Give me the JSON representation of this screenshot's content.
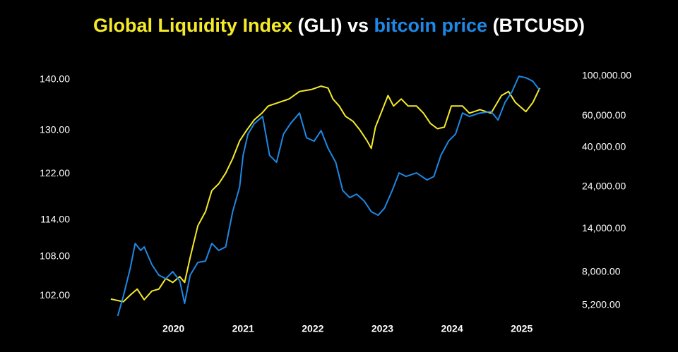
{
  "chart_data": {
    "type": "line",
    "title": [
      "Global Liquidity Index",
      "(GLI) vs",
      "bitcoin price",
      "(BTCUSD)"
    ],
    "background": "#000000",
    "text_color": "#ffffff",
    "grid": false,
    "xlim": [
      2019.0,
      2025.5
    ],
    "xticks": [
      2020,
      2021,
      2022,
      2023,
      2024,
      2025
    ],
    "ylim": [
      98.8,
      141.9
    ],
    "ylog": true,
    "yticks": [
      {
        "value": 102,
        "label": "102.00"
      },
      {
        "value": 108,
        "label": "108.00"
      },
      {
        "value": 114,
        "label": "114.00"
      },
      {
        "value": 122,
        "label": "122.00"
      },
      {
        "value": 130,
        "label": "130.00"
      },
      {
        "value": 140,
        "label": "140.00"
      }
    ],
    "y2lim": [
      4455,
      107500
    ],
    "y2log": true,
    "y2ticks": [
      {
        "value": 5200,
        "label": "5,200.00"
      },
      {
        "value": 8000,
        "label": "8,000.00"
      },
      {
        "value": 14000,
        "label": "14,000.00"
      },
      {
        "value": 24000,
        "label": "24,000.00"
      },
      {
        "value": 40000,
        "label": "40,000.00"
      },
      {
        "value": 60000,
        "label": "60,000.00"
      },
      {
        "value": 100000,
        "label": "100,000.00"
      }
    ],
    "series": [
      {
        "color": "#f5ea2a",
        "axis": "y",
        "x": [
          2019.1,
          2019.28,
          2019.38,
          2019.48,
          2019.58,
          2019.69,
          2019.79,
          2019.89,
          2019.99,
          2020.09,
          2020.16,
          2020.24,
          2020.35,
          2020.46,
          2020.55,
          2020.65,
          2020.75,
          2020.85,
          2020.95,
          2021.05,
          2021.16,
          2021.27,
          2021.36,
          2021.51,
          2021.66,
          2021.81,
          2021.98,
          2022.12,
          2022.22,
          2022.29,
          2022.38,
          2022.47,
          2022.58,
          2022.68,
          2022.78,
          2022.84,
          2022.9,
          2022.98,
          2023.08,
          2023.16,
          2023.27,
          2023.37,
          2023.49,
          2023.59,
          2023.69,
          2023.79,
          2023.89,
          2023.99,
          2024.15,
          2024.25,
          2024.4,
          2024.56,
          2024.71,
          2024.81,
          2024.91,
          2025.06,
          2025.16,
          2025.26
        ],
        "values": [
          101.5,
          101.1,
          102.1,
          103.0,
          101.4,
          102.7,
          103.0,
          104.6,
          104.0,
          104.9,
          104.0,
          107.9,
          113.0,
          115.4,
          119.0,
          120.2,
          122.1,
          124.7,
          128.0,
          130.0,
          132.0,
          133.3,
          134.7,
          135.4,
          136.1,
          137.6,
          138.0,
          138.7,
          138.3,
          136.1,
          134.7,
          132.7,
          131.7,
          130.0,
          128.0,
          126.6,
          130.6,
          133.3,
          136.8,
          134.7,
          136.1,
          134.7,
          134.7,
          133.3,
          131.3,
          130.3,
          130.6,
          134.7,
          134.7,
          133.3,
          134.0,
          133.3,
          136.8,
          137.6,
          135.4,
          133.6,
          135.4,
          138.3
        ]
      },
      {
        "color": "#1e88e5",
        "axis": "y2",
        "x": [
          2019.2,
          2019.28,
          2019.38,
          2019.45,
          2019.53,
          2019.58,
          2019.69,
          2019.79,
          2019.89,
          2019.99,
          2020.09,
          2020.16,
          2020.24,
          2020.35,
          2020.46,
          2020.55,
          2020.65,
          2020.75,
          2020.85,
          2020.95,
          2021.0,
          2021.07,
          2021.16,
          2021.28,
          2021.38,
          2021.48,
          2021.58,
          2021.68,
          2021.81,
          2021.91,
          2022.02,
          2022.12,
          2022.22,
          2022.33,
          2022.43,
          2022.53,
          2022.63,
          2022.74,
          2022.84,
          2022.94,
          2023.03,
          2023.14,
          2023.24,
          2023.34,
          2023.49,
          2023.64,
          2023.74,
          2023.84,
          2023.95,
          2024.05,
          2024.15,
          2024.25,
          2024.4,
          2024.56,
          2024.66,
          2024.76,
          2024.86,
          2024.96,
          2025.06,
          2025.16,
          2025.26
        ],
        "values": [
          4540,
          5850,
          8420,
          11570,
          10570,
          11060,
          8810,
          7690,
          7340,
          8050,
          7150,
          5340,
          7690,
          9050,
          9220,
          11570,
          10570,
          11060,
          17420,
          23950,
          36040,
          47370,
          54240,
          59440,
          36040,
          32920,
          47370,
          54240,
          62190,
          45240,
          43260,
          49560,
          39470,
          32920,
          22880,
          20900,
          21840,
          19970,
          17420,
          16650,
          18230,
          22880,
          28720,
          27450,
          28720,
          26230,
          27450,
          36040,
          43260,
          47370,
          62190,
          59440,
          62190,
          63350,
          56800,
          71290,
          81730,
          99830,
          97960,
          93640,
          83220
        ]
      }
    ]
  }
}
